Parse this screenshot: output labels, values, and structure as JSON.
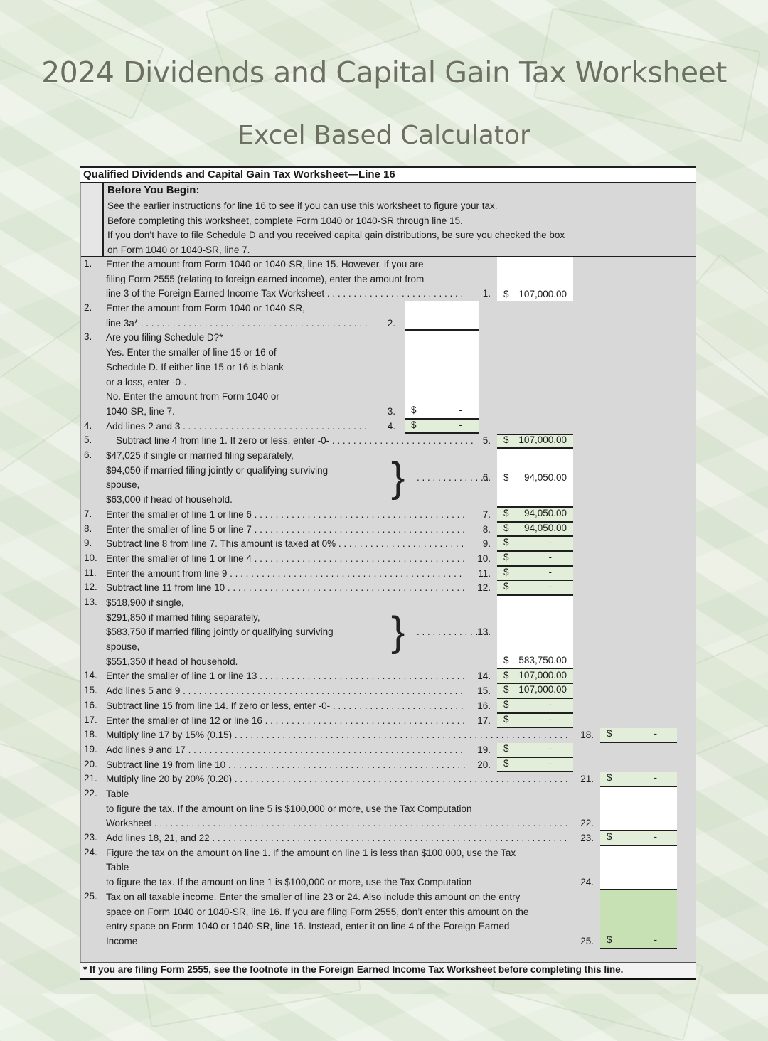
{
  "page": {
    "title": "2024 Dividends and Capital Gain Tax Worksheet",
    "subtitle": "Excel Based Calculator"
  },
  "colors": {
    "page_bg": "#e7ede1",
    "worksheet_bg": "#d8d8d8",
    "cell_white": "#ffffff",
    "cell_green": "#e3eeda",
    "cell_green_dark": "#c7e0b4",
    "border": "#1e1e1e",
    "title_color": "#6c7060"
  },
  "worksheet": {
    "header": "Qualified Dividends and Capital Gain Tax Worksheet—Line 16",
    "before": {
      "heading": "Before You Begin:",
      "lines": [
        "See the earlier instructions for line 16 to see if you can use this worksheet to figure your tax.",
        "Before completing this worksheet, complete Form 1040 or 1040-SR through line 15.",
        "If you don’t have to file Schedule D and you received capital gain distributions, be sure you checked the box",
        "on Form 1040 or 1040-SR, line 7."
      ]
    },
    "leader_dots": ". . . . . . . . . . . . . . . . . . . . . . . . . . . . . . . . . . . . . . . . . . . . . . . . . . . . . . . . . . . . . . . . . . . . . . . . . . . . . . . .",
    "lines": [
      {
        "n": "1.",
        "rows": [
          "Enter the amount from Form 1040 or 1040-SR, line 15. However, if you are",
          "filing Form 2555 (relating to foreign earned income), enter the amount from",
          "line 3 of the Foreign Earned Income Tax Worksheet"
        ],
        "leader_rows": [
          2
        ],
        "tw": 505,
        "label": {
          "col": "mid",
          "row": 2
        },
        "box": {
          "col": "mid",
          "start": 0,
          "span": 3,
          "fill": "w",
          "cur": "$",
          "amount": "107,000.00",
          "vpos": "bottom",
          "bb": false
        }
      },
      {
        "n": "2.",
        "rows": [
          "Enter the amount from Form 1040 or 1040-SR,",
          "line 3a*"
        ],
        "leader_rows": [
          1
        ],
        "tw": 372,
        "label": {
          "col": "inner",
          "row": 1
        },
        "box": {
          "col": "inner",
          "start": 0,
          "span": 2,
          "fill": "w"
        }
      },
      {
        "n": "3.",
        "rows": [
          "Are you filing Schedule D?*",
          "Yes. Enter the smaller of line 15 or 16 of",
          "Schedule D. If either line 15 or 16 is blank",
          "or a loss, enter -0-.",
          "No. Enter the amount from Form 1040 or",
          "1040-SR, line 7."
        ],
        "tw": 372,
        "label": {
          "col": "inner",
          "row": 5
        },
        "box": {
          "col": "inner",
          "start": 0,
          "span": 6,
          "fill": "w",
          "cur": "$",
          "amount": "-",
          "vpos": "bottom"
        }
      },
      {
        "n": "4.",
        "rows": [
          "Add lines 2 and 3"
        ],
        "leader_rows": [
          0
        ],
        "tw": 372,
        "label": {
          "col": "inner",
          "row": 0
        },
        "box": {
          "col": "inner",
          "start": 0,
          "span": 1,
          "fill": "g",
          "cur": "$",
          "amount": "-"
        }
      },
      {
        "n": "5.",
        "rows": [
          "Subtract line 4 from line 1. If zero or less, enter -0-"
        ],
        "leader_rows": [
          0
        ],
        "indent": 14,
        "tw": 505,
        "label": {
          "col": "mid",
          "row": 0
        },
        "box": {
          "col": "mid",
          "start": 0,
          "span": 1,
          "fill": "g",
          "cur": "$",
          "amount": "107,000.00",
          "bt": true
        }
      },
      {
        "n": "6.",
        "rows": [
          "$47,025 if single or married filing separately,",
          "$94,050 if married filing jointly or qualifying surviving",
          "spouse,",
          "$63,000 if head of household."
        ],
        "tw": 505,
        "brace": true,
        "label": {
          "col": "mid",
          "center": true
        },
        "box": {
          "col": "mid",
          "start": 0,
          "span": 4,
          "fill": "w",
          "cur": "$",
          "amount": "94,050.00",
          "vpos": "center"
        }
      },
      {
        "n": "7.",
        "rows": [
          "Enter the smaller of line 1 or line 6"
        ],
        "leader_rows": [
          0
        ],
        "tw": 505,
        "label": {
          "col": "mid",
          "row": 0
        },
        "box": {
          "col": "mid",
          "start": 0,
          "span": 1,
          "fill": "g",
          "cur": "$",
          "amount": "94,050.00"
        }
      },
      {
        "n": "8.",
        "rows": [
          "Enter the smaller of line 5 or line 7"
        ],
        "leader_rows": [
          0
        ],
        "tw": 505,
        "label": {
          "col": "mid",
          "row": 0
        },
        "box": {
          "col": "mid",
          "start": 0,
          "span": 1,
          "fill": "g",
          "cur": "$",
          "amount": "94,050.00"
        }
      },
      {
        "n": "9.",
        "rows": [
          "Subtract line 8 from line 7. This amount is taxed at 0%"
        ],
        "leader_rows": [
          0
        ],
        "tw": 505,
        "label": {
          "col": "mid",
          "row": 0
        },
        "box": {
          "col": "mid",
          "start": 0,
          "span": 1,
          "fill": "g",
          "cur": "$",
          "amount": "-"
        }
      },
      {
        "n": "10.",
        "rows": [
          "Enter the smaller of line 1 or line 4"
        ],
        "leader_rows": [
          0
        ],
        "tw": 505,
        "label": {
          "col": "mid",
          "row": 0
        },
        "box": {
          "col": "mid",
          "start": 0,
          "span": 1,
          "fill": "g",
          "cur": "$",
          "amount": "-"
        }
      },
      {
        "n": "11.",
        "rows": [
          "Enter the amount from line 9"
        ],
        "leader_rows": [
          0
        ],
        "tw": 505,
        "label": {
          "col": "mid",
          "row": 0
        },
        "box": {
          "col": "mid",
          "start": 0,
          "span": 1,
          "fill": "g",
          "cur": "$",
          "amount": "-"
        }
      },
      {
        "n": "12.",
        "rows": [
          "Subtract line 11 from line 10"
        ],
        "leader_rows": [
          0
        ],
        "tw": 505,
        "label": {
          "col": "mid",
          "row": 0
        },
        "box": {
          "col": "mid",
          "start": 0,
          "span": 1,
          "fill": "g",
          "cur": "$",
          "amount": "-"
        }
      },
      {
        "n": "13.",
        "rows": [
          "$518,900 if single,",
          "$291,850 if married filing separately,",
          "$583,750 if married filing jointly or qualifying surviving",
          "spouse,",
          "$551,350 if head of household."
        ],
        "tw": 505,
        "brace": true,
        "label": {
          "col": "mid",
          "row": 2
        },
        "box": {
          "col": "mid",
          "start": 0,
          "span": 5,
          "fill": "w",
          "cur": "$",
          "amount": "583,750.00",
          "vpos": "bottom"
        }
      },
      {
        "n": "14.",
        "rows": [
          "Enter the smaller of line 1 or line 13"
        ],
        "leader_rows": [
          0
        ],
        "tw": 505,
        "label": {
          "col": "mid",
          "row": 0
        },
        "box": {
          "col": "mid",
          "start": 0,
          "span": 1,
          "fill": "g",
          "cur": "$",
          "amount": "107,000.00"
        }
      },
      {
        "n": "15.",
        "rows": [
          "Add lines 5 and 9"
        ],
        "leader_rows": [
          0
        ],
        "tw": 505,
        "label": {
          "col": "mid",
          "row": 0
        },
        "box": {
          "col": "mid",
          "start": 0,
          "span": 1,
          "fill": "g",
          "cur": "$",
          "amount": "107,000.00"
        }
      },
      {
        "n": "16.",
        "rows": [
          "Subtract line 15 from line 14. If zero or less, enter -0-"
        ],
        "leader_rows": [
          0
        ],
        "tw": 505,
        "label": {
          "col": "mid",
          "row": 0
        },
        "box": {
          "col": "mid",
          "start": 0,
          "span": 1,
          "fill": "g",
          "cur": "$",
          "amount": "-"
        }
      },
      {
        "n": "17.",
        "rows": [
          "Enter the smaller of line 12 or line 16"
        ],
        "leader_rows": [
          0
        ],
        "tw": 505,
        "label": {
          "col": "mid",
          "row": 0
        },
        "box": {
          "col": "mid",
          "start": 0,
          "span": 1,
          "fill": "g",
          "cur": "$",
          "amount": "-"
        }
      },
      {
        "n": "18.",
        "rows": [
          "Multiply line 17 by 15% (0.15)"
        ],
        "leader_rows": [
          0
        ],
        "tw": 652,
        "label": {
          "col": "right",
          "row": 0
        },
        "box": {
          "col": "right",
          "start": 0,
          "span": 1,
          "fill": "g",
          "cur": "$",
          "amount": "-"
        }
      },
      {
        "n": "19.",
        "rows": [
          "Add lines 9 and 17"
        ],
        "leader_rows": [
          0
        ],
        "tw": 505,
        "label": {
          "col": "mid",
          "row": 0
        },
        "box": {
          "col": "mid",
          "start": 0,
          "span": 1,
          "fill": "g",
          "cur": "$",
          "amount": "-"
        }
      },
      {
        "n": "20.",
        "rows": [
          "Subtract line 19 from line 10"
        ],
        "leader_rows": [
          0
        ],
        "tw": 505,
        "label": {
          "col": "mid",
          "row": 0
        },
        "box": {
          "col": "mid",
          "start": 0,
          "span": 1,
          "fill": "g",
          "cur": "$",
          "amount": "-"
        }
      },
      {
        "n": "21.",
        "rows": [
          "Multiply line 20 by 20% (0.20)"
        ],
        "leader_rows": [
          0
        ],
        "tw": 652,
        "label": {
          "col": "right",
          "row": 0
        },
        "box": {
          "col": "right",
          "start": 0,
          "span": 1,
          "fill": "g",
          "cur": "$",
          "amount": "-"
        }
      },
      {
        "n": "22.",
        "rows": [
          "Table",
          "to figure the tax. If the amount on line 5 is $100,000 or more, use the Tax Computation",
          "Worksheet"
        ],
        "leader_rows": [
          2
        ],
        "tw": 652,
        "label": {
          "col": "right",
          "row": 2
        },
        "box": {
          "col": "right",
          "start": 0,
          "span": 3,
          "fill": "w"
        }
      },
      {
        "n": "23.",
        "rows": [
          "Add lines 18, 21, and 22"
        ],
        "leader_rows": [
          0
        ],
        "tw": 652,
        "label": {
          "col": "right",
          "row": 0
        },
        "box": {
          "col": "right",
          "start": 0,
          "span": 1,
          "fill": "g",
          "cur": "$",
          "amount": "-"
        }
      },
      {
        "n": "24.",
        "rows": [
          "Figure the tax on the amount on line 1. If the amount on line 1 is less than $100,000, use the Tax",
          "Table",
          "to figure the tax. If the amount on line 1 is $100,000 or more, use the Tax Computation"
        ],
        "tw": 652,
        "label": {
          "col": "right",
          "row": 2
        },
        "box": {
          "col": "right",
          "start": 0,
          "span": 3,
          "fill": "w"
        }
      },
      {
        "n": "25.",
        "rows": [
          "Tax on all taxable income. Enter the smaller of line 23 or 24. Also include this amount on the entry",
          "space on Form 1040 or 1040-SR, line 16. If you are filing Form 2555, don’t enter this amount on the",
          "entry space on Form 1040 or 1040-SR, line 16. Instead, enter it on line 4 of the Foreign Earned",
          "Income"
        ],
        "tw": 652,
        "label": {
          "col": "right",
          "row": 3
        },
        "box": {
          "col": "right",
          "start": 0,
          "span": 4,
          "fill": "d",
          "cur": "$",
          "amount": "-",
          "vpos": "bottom"
        }
      }
    ],
    "footnote": "* If you are filing Form 2555, see the footnote in the Foreign Earned Income Tax Worksheet before completing this line.",
    "brace_glyph": "}"
  }
}
